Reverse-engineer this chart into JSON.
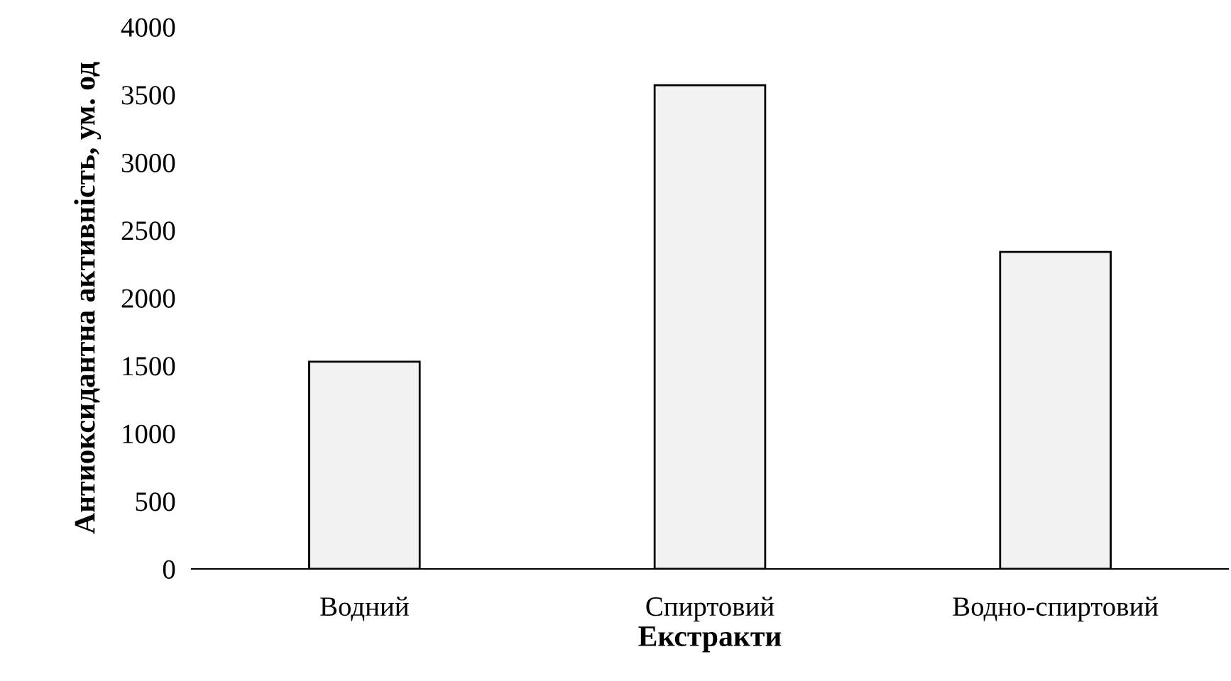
{
  "chart_data": {
    "type": "bar",
    "xlabel": "Екстракти",
    "ylabel": "Антиоксидантна активність, ум. од",
    "categories": [
      "Водний",
      "Спиртовий",
      "Водно-спиртовий"
    ],
    "values": [
      1530,
      3570,
      2340
    ],
    "color": "#f2f2f2",
    "ylim": [
      0,
      4000
    ],
    "yticks": [
      0,
      500,
      1000,
      1500,
      2000,
      2500,
      3000,
      3500,
      4000
    ],
    "grid": false
  }
}
